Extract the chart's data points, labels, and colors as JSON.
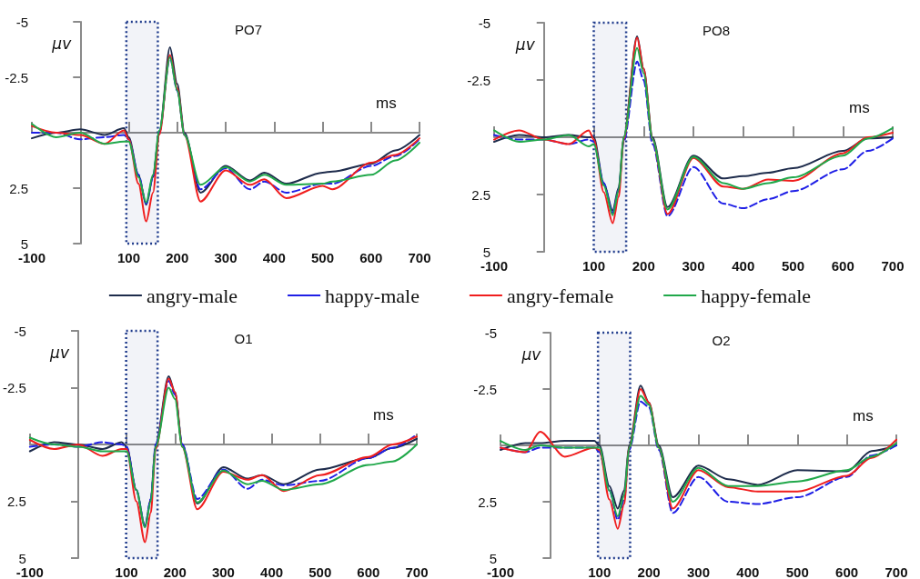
{
  "chart_data": [
    {
      "type": "line",
      "title": "PO7",
      "xlabel": "ms",
      "ylabel": "μv",
      "legend": "bottom",
      "xlim": [
        -100,
        700
      ],
      "ylim": [
        5,
        -5
      ],
      "xticks": [
        -100,
        100,
        200,
        300,
        400,
        500,
        600,
        700
      ],
      "yticks": [
        -5,
        -2.5,
        2.5,
        5
      ],
      "bands": [
        {
          "axis": "x",
          "from": 95,
          "to": 160,
          "color": "#1f3b8c"
        }
      ],
      "x": [
        -100,
        -50,
        0,
        50,
        90,
        100,
        120,
        136,
        150,
        163,
        185,
        200,
        215,
        248,
        300,
        350,
        380,
        425,
        500,
        520,
        600,
        650,
        700
      ],
      "series": [
        {
          "name": "angry-male",
          "color": "#1e2c4c",
          "values": [
            0.25,
            0,
            -0.15,
            0.1,
            -0.2,
            0.2,
            1.9,
            3.25,
            2.0,
            0,
            -3.85,
            -2.2,
            0,
            2.7,
            1.5,
            2.15,
            1.8,
            2.3,
            1.8,
            1.75,
            1.4,
            0.8,
            0.1
          ]
        },
        {
          "name": "happy-male",
          "color": "#1f1fe6",
          "line_style": "dashed",
          "values": [
            0,
            0,
            0.3,
            0.2,
            0.1,
            0.3,
            1.9,
            3.2,
            2.0,
            0,
            -3.4,
            -1.9,
            0.1,
            2.55,
            1.6,
            2.55,
            2.2,
            2.7,
            2.3,
            2.3,
            1.5,
            1.05,
            0.3
          ]
        },
        {
          "name": "angry-female",
          "color": "#f01e1e",
          "values": [
            -0.3,
            0,
            0.1,
            0.5,
            -0.1,
            0.3,
            2.3,
            4.0,
            2.7,
            0.1,
            -3.5,
            -2.0,
            0.1,
            3.1,
            1.7,
            2.35,
            2.1,
            2.95,
            2.4,
            2.55,
            1.35,
            1.0,
            0.25
          ]
        },
        {
          "name": "happy-female",
          "color": "#20a84a",
          "values": [
            -0.4,
            0.2,
            0,
            0.5,
            0.4,
            0.4,
            2.0,
            3.15,
            1.9,
            -0.1,
            -3.4,
            -1.9,
            0.1,
            2.35,
            1.55,
            2.2,
            1.9,
            2.35,
            2.3,
            2.2,
            1.9,
            1.25,
            0.45
          ]
        }
      ]
    },
    {
      "type": "line",
      "title": "PO8",
      "xlabel": "ms",
      "ylabel": "μv",
      "xlim": [
        -100,
        700
      ],
      "ylim": [
        5,
        -5
      ],
      "xticks": [
        -100,
        100,
        200,
        300,
        400,
        500,
        600,
        700
      ],
      "yticks": [
        -5,
        -2.5,
        2.5,
        5
      ],
      "bands": [
        {
          "axis": "x",
          "from": 100,
          "to": 165,
          "color": "#1f3b8c"
        }
      ],
      "x": [
        -100,
        -50,
        0,
        50,
        90,
        100,
        120,
        138,
        150,
        160,
        187,
        200,
        218,
        248,
        300,
        360,
        400,
        450,
        500,
        600,
        650,
        700
      ],
      "series": [
        {
          "color": "#1e2c4c",
          "values": [
            0.2,
            -0.1,
            0,
            -0.1,
            0,
            0,
            2.0,
            3.2,
            2.2,
            0,
            -4.4,
            -3.0,
            0,
            3.05,
            0.8,
            1.8,
            1.7,
            1.55,
            1.35,
            0.6,
            0.05,
            0
          ]
        },
        {
          "color": "#1f1fe6",
          "line_style": "dashed",
          "values": [
            -0.1,
            0.1,
            0.1,
            0.3,
            0.1,
            0.2,
            2.0,
            3.3,
            2.3,
            0.2,
            -3.3,
            -2.5,
            0.3,
            3.45,
            1.3,
            2.9,
            3.1,
            2.7,
            2.35,
            1.4,
            0.6,
            0.05
          ]
        },
        {
          "color": "#f01e1e",
          "values": [
            0.1,
            -0.3,
            0.1,
            0.3,
            -0.3,
            0.1,
            2.4,
            3.75,
            2.6,
            0.1,
            -4.35,
            -3.0,
            0.1,
            3.35,
            0.9,
            2.15,
            2.25,
            1.85,
            1.9,
            0.7,
            0,
            -0.2
          ]
        },
        {
          "color": "#20a84a",
          "values": [
            -0.3,
            0.2,
            0.1,
            -0.1,
            0.4,
            0.3,
            2.1,
            3.4,
            2.3,
            0,
            -3.9,
            -2.8,
            0.1,
            3.15,
            0.85,
            2.0,
            2.25,
            2.0,
            1.75,
            0.8,
            0.05,
            -0.4
          ]
        }
      ]
    },
    {
      "type": "line",
      "title": "O1",
      "xlabel": "ms",
      "ylabel": "μv",
      "xlim": [
        -100,
        700
      ],
      "ylim": [
        5,
        -5
      ],
      "xticks": [
        -100,
        100,
        200,
        300,
        400,
        500,
        600,
        700
      ],
      "yticks": [
        -5,
        -2.5,
        2.5,
        5
      ],
      "bands": [
        {
          "axis": "x",
          "from": 99,
          "to": 164,
          "color": "#1f3b8c"
        }
      ],
      "x": [
        -100,
        -50,
        0,
        50,
        90,
        100,
        120,
        138,
        150,
        160,
        187,
        200,
        215,
        246,
        300,
        350,
        380,
        425,
        500,
        600,
        650,
        700
      ],
      "series": [
        {
          "color": "#1e2c4c",
          "values": [
            0.3,
            -0.1,
            0,
            0.2,
            -0.1,
            0.1,
            2.0,
            3.6,
            2.4,
            0,
            -3.0,
            -2.3,
            0,
            2.6,
            1.0,
            1.5,
            1.35,
            1.75,
            1.1,
            0.6,
            0.15,
            -0.25
          ]
        },
        {
          "color": "#1f1fe6",
          "line_style": "dashed",
          "values": [
            0.1,
            0,
            0.1,
            -0.1,
            0,
            0.1,
            2.0,
            3.6,
            2.4,
            0,
            -2.8,
            -2.2,
            0,
            2.4,
            1.1,
            1.95,
            1.55,
            1.8,
            1.6,
            0.6,
            0.15,
            -0.45
          ]
        },
        {
          "color": "#f01e1e",
          "values": [
            -0.2,
            0.2,
            0,
            0.5,
            0.2,
            0.2,
            2.5,
            4.3,
            3.0,
            0.2,
            -2.9,
            -2.3,
            0.1,
            2.85,
            1.2,
            1.55,
            1.35,
            2.05,
            1.35,
            0.55,
            0,
            -0.35
          ]
        },
        {
          "color": "#20a84a",
          "values": [
            -0.3,
            0,
            0.1,
            0.3,
            0.3,
            0.3,
            2.0,
            3.65,
            2.5,
            0.1,
            -2.5,
            -2.0,
            0.1,
            2.55,
            1.15,
            1.75,
            1.6,
            2.0,
            1.75,
            0.9,
            0.75,
            0
          ]
        }
      ]
    },
    {
      "type": "line",
      "title": "O2",
      "xlabel": "ms",
      "ylabel": "μv",
      "xlim": [
        -100,
        700
      ],
      "ylim": [
        5,
        -5
      ],
      "xticks": [
        -100,
        100,
        200,
        300,
        400,
        500,
        600,
        700
      ],
      "yticks": [
        -5,
        -2.5,
        2.5,
        5
      ],
      "bands": [
        {
          "axis": "x",
          "from": 97,
          "to": 162,
          "color": "#1f3b8c"
        }
      ],
      "x": [
        -100,
        -50,
        -20,
        30,
        90,
        100,
        120,
        137,
        150,
        160,
        183,
        200,
        220,
        248,
        300,
        360,
        420,
        500,
        600,
        650,
        700
      ],
      "series": [
        {
          "color": "#1e2c4c",
          "values": [
            0.2,
            -0.1,
            -0.1,
            -0.2,
            -0.2,
            0,
            1.8,
            2.8,
            2.0,
            0,
            -2.65,
            -1.9,
            0,
            2.3,
            0.9,
            1.5,
            1.75,
            1.1,
            1.15,
            0.25,
            0
          ]
        },
        {
          "color": "#1f1fe6",
          "line_style": "dashed",
          "values": [
            0.1,
            0.3,
            0.1,
            0.1,
            0.1,
            0.3,
            2.0,
            3.3,
            2.4,
            0.2,
            -1.95,
            -1.7,
            0.2,
            3.0,
            1.4,
            2.5,
            2.6,
            2.3,
            1.4,
            0.45,
            0
          ]
        },
        {
          "color": "#f01e1e",
          "values": [
            0.1,
            0.3,
            -0.6,
            0.5,
            0.1,
            0.2,
            2.4,
            3.7,
            2.6,
            0.1,
            -2.5,
            -1.9,
            0.1,
            2.8,
            1.1,
            1.85,
            2.05,
            2.05,
            1.35,
            0.55,
            -0.25
          ]
        },
        {
          "color": "#20a84a",
          "values": [
            -0.2,
            0.2,
            0,
            0.1,
            0.1,
            0.1,
            2.0,
            3.15,
            2.2,
            0.1,
            -2.2,
            -1.8,
            0.1,
            2.5,
            1.0,
            1.8,
            1.8,
            1.6,
            1.1,
            0.5,
            -0.1
          ]
        }
      ]
    }
  ]
}
